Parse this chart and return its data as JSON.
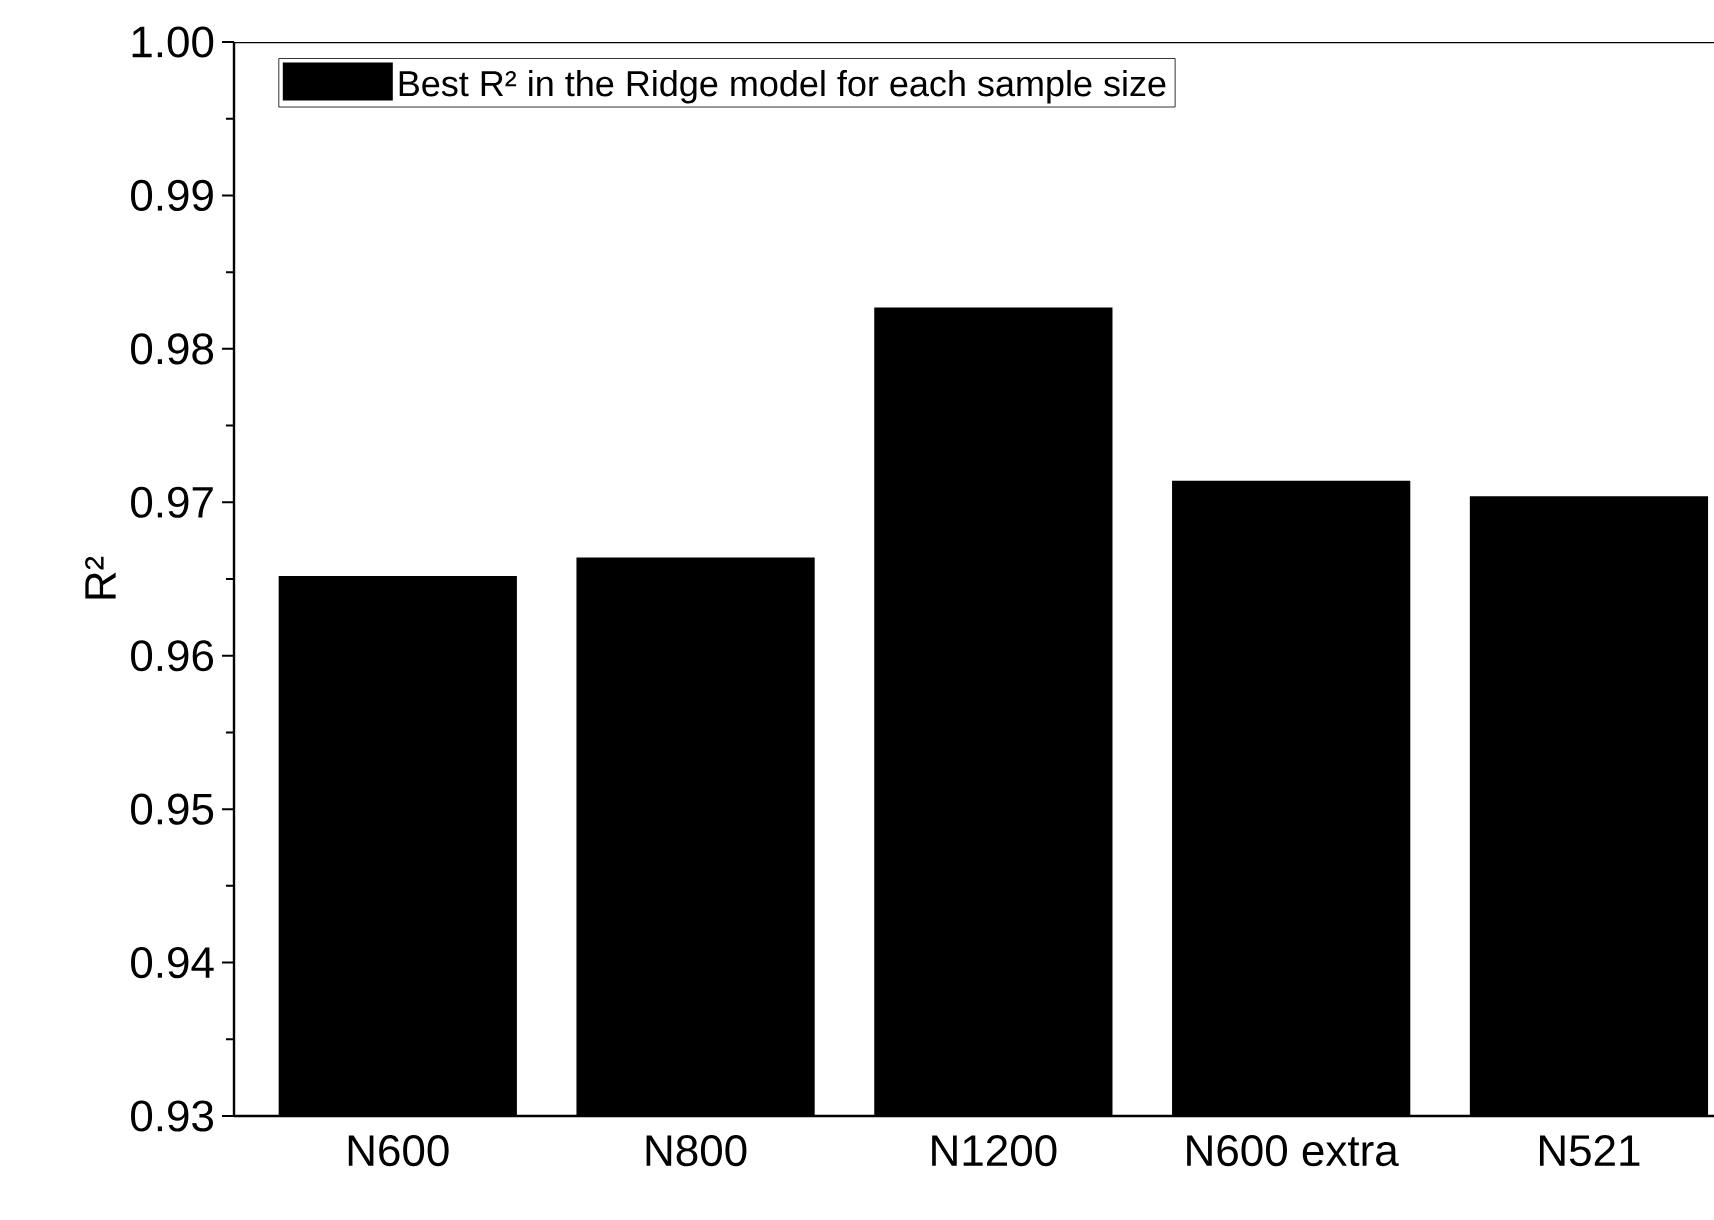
{
  "chart_data": {
    "type": "bar",
    "ylabel": "R²",
    "categories": [
      "N600",
      "N800",
      "N1200",
      "N600 extra",
      "N521"
    ],
    "series": [
      {
        "name": "Best R² in the Ridge model for each sample size",
        "color": "#000000",
        "values": [
          0.9652,
          0.9664,
          0.9827,
          0.9714,
          0.9704
        ]
      }
    ],
    "ylim": [
      0.93,
      1.0
    ],
    "yticks": [
      {
        "value": 0.93,
        "label": "0.93"
      },
      {
        "value": 0.94,
        "label": "0.94"
      },
      {
        "value": 0.95,
        "label": "0.95"
      },
      {
        "value": 0.96,
        "label": "0.96"
      },
      {
        "value": 0.97,
        "label": "0.97"
      },
      {
        "value": 0.98,
        "label": "0.98"
      },
      {
        "value": 0.99,
        "label": "0.99"
      },
      {
        "value": 1.0,
        "label": "1.00"
      }
    ],
    "legend": "top left",
    "grid": false
  }
}
